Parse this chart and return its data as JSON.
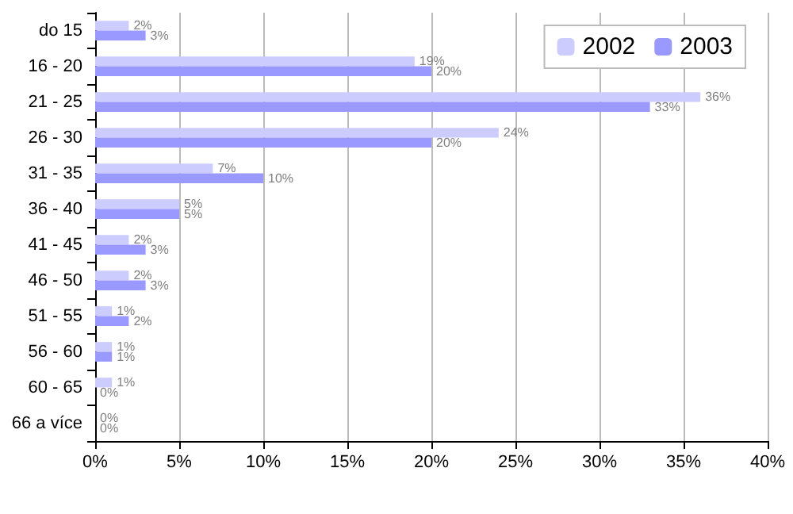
{
  "chart_data": {
    "type": "bar",
    "orientation": "horizontal",
    "categories": [
      "do 15",
      "16 - 20",
      "21 - 25",
      "26 - 30",
      "31 - 35",
      "36 - 40",
      "41 - 45",
      "46 - 50",
      "51 - 55",
      "56 - 60",
      "60 - 65",
      "66 a více"
    ],
    "series": [
      {
        "name": "2002",
        "color": "#ccccff",
        "values": [
          2,
          19,
          36,
          24,
          7,
          5,
          2,
          2,
          1,
          1,
          1,
          0
        ],
        "value_labels": [
          "2%",
          "19%",
          "36%",
          "24%",
          "7%",
          "5%",
          "2%",
          "2%",
          "1%",
          "1%",
          "1%",
          "0%"
        ]
      },
      {
        "name": "2003",
        "color": "#9999ff",
        "values": [
          3,
          20,
          33,
          20,
          10,
          5,
          3,
          3,
          2,
          1,
          0,
          0
        ],
        "value_labels": [
          "3%",
          "20%",
          "33%",
          "20%",
          "10%",
          "5%",
          "3%",
          "3%",
          "2%",
          "1%",
          "0%",
          "0%"
        ]
      }
    ],
    "xlim": [
      0,
      40
    ],
    "xticks": [
      {
        "value": 0,
        "label": "0%"
      },
      {
        "value": 5,
        "label": "5%"
      },
      {
        "value": 10,
        "label": "10%"
      },
      {
        "value": 15,
        "label": "15%"
      },
      {
        "value": 20,
        "label": "20%"
      },
      {
        "value": 25,
        "label": "25%"
      },
      {
        "value": 30,
        "label": "30%"
      },
      {
        "value": 35,
        "label": "35%"
      },
      {
        "value": 40,
        "label": "40%"
      }
    ],
    "grid": "x",
    "legend": "top right"
  }
}
